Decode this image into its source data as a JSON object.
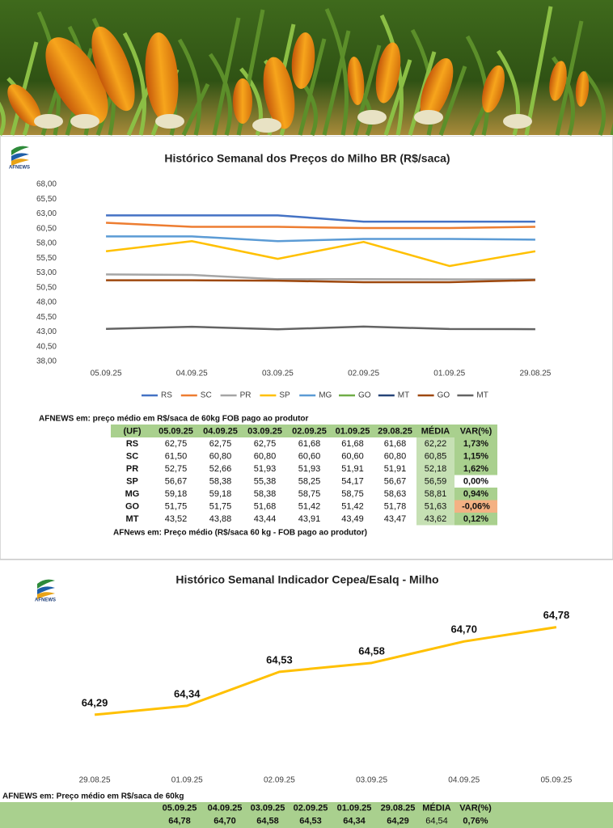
{
  "logo_text": "AFNEWS",
  "chart_data": [
    {
      "type": "line",
      "title": "Histórico Semanal dos Preços do Milho BR (R$/saca)",
      "categories": [
        "05.09.25",
        "04.09.25",
        "03.09.25",
        "02.09.25",
        "01.09.25",
        "29.08.25"
      ],
      "ylim": [
        38,
        68
      ],
      "yticks": [
        {
          "value": 38,
          "label": "38,00"
        },
        {
          "value": 40.5,
          "label": "40,50"
        },
        {
          "value": 43,
          "label": "43,00"
        },
        {
          "value": 45.5,
          "label": "45,50"
        },
        {
          "value": 48,
          "label": "48,00"
        },
        {
          "value": 50.5,
          "label": "50,50"
        },
        {
          "value": 53,
          "label": "53,00"
        },
        {
          "value": 55.5,
          "label": "55,50"
        },
        {
          "value": 58,
          "label": "58,00"
        },
        {
          "value": 60.5,
          "label": "60,50"
        },
        {
          "value": 63,
          "label": "63,00"
        },
        {
          "value": 65.5,
          "label": "65,50"
        },
        {
          "value": 68,
          "label": "68,00"
        }
      ],
      "grid": false,
      "legend": "bottom",
      "series": [
        {
          "name": "RS",
          "color": "#4472c4",
          "values": [
            62.75,
            62.75,
            62.75,
            61.68,
            61.68,
            61.68
          ]
        },
        {
          "name": "SC",
          "color": "#ed7d31",
          "values": [
            61.5,
            60.8,
            60.8,
            60.6,
            60.6,
            60.8
          ]
        },
        {
          "name": "PR",
          "color": "#a5a5a5",
          "values": [
            52.75,
            52.66,
            51.93,
            51.93,
            51.91,
            51.91
          ]
        },
        {
          "name": "SP",
          "color": "#ffc000",
          "values": [
            56.67,
            58.38,
            55.38,
            58.25,
            54.17,
            56.67
          ]
        },
        {
          "name": "MG",
          "color": "#5b9bd5",
          "values": [
            59.18,
            59.18,
            58.38,
            58.75,
            58.75,
            58.63
          ]
        },
        {
          "name": "GO",
          "color": "#70ad47",
          "values": [
            null,
            null,
            null,
            null,
            null,
            null
          ]
        },
        {
          "name": "MT",
          "color": "#264478",
          "values": [
            null,
            null,
            null,
            null,
            null,
            null
          ]
        },
        {
          "name": "GO",
          "color": "#9e480e",
          "values": [
            51.75,
            51.75,
            51.68,
            51.42,
            51.42,
            51.78
          ]
        },
        {
          "name": "MT",
          "color": "#636363",
          "values": [
            43.52,
            43.88,
            43.44,
            43.91,
            43.49,
            43.47
          ]
        }
      ]
    },
    {
      "type": "line",
      "title": "Histórico Semanal Indicador Cepea/Esalq - Milho",
      "categories": [
        "29.08.25",
        "01.09.25",
        "02.09.25",
        "03.09.25",
        "04.09.25",
        "05.09.25"
      ],
      "ylim": [
        64,
        65
      ],
      "color": "#ffc000",
      "values": [
        64.29,
        64.34,
        64.53,
        64.58,
        64.7,
        64.78
      ],
      "value_labels": [
        "64,29",
        "64,34",
        "64,53",
        "64,58",
        "64,70",
        "64,78"
      ]
    }
  ],
  "table1": {
    "caption": "AFNEWS em: preço médio em R$/saca de 60kg FOB pago ao produtor",
    "header": [
      "(UF)",
      "05.09.25",
      "04.09.25",
      "03.09.25",
      "02.09.25",
      "01.09.25",
      "29.08.25",
      "MÉDIA",
      "VAR(%)"
    ],
    "rows": [
      [
        "RS",
        "62,75",
        "62,75",
        "62,75",
        "61,68",
        "61,68",
        "61,68",
        "62,22",
        "1,73%"
      ],
      [
        "SC",
        "61,50",
        "60,80",
        "60,80",
        "60,60",
        "60,60",
        "60,80",
        "60,85",
        "1,15%"
      ],
      [
        "PR",
        "52,75",
        "52,66",
        "51,93",
        "51,93",
        "51,91",
        "51,91",
        "52,18",
        "1,62%"
      ],
      [
        "SP",
        "56,67",
        "58,38",
        "55,38",
        "58,25",
        "54,17",
        "56,67",
        "56,59",
        "0,00%"
      ],
      [
        "MG",
        "59,18",
        "59,18",
        "58,38",
        "58,75",
        "58,75",
        "58,63",
        "58,81",
        "0,94%"
      ],
      [
        "GO",
        "51,75",
        "51,75",
        "51,68",
        "51,42",
        "51,42",
        "51,78",
        "51,63",
        "-0,06%"
      ],
      [
        "MT",
        "43,52",
        "43,88",
        "43,44",
        "43,91",
        "43,49",
        "43,47",
        "43,62",
        "0,12%"
      ]
    ],
    "var_colors": [
      "#a9d08e",
      "#a9d08e",
      "#a9d08e",
      "#ffffff",
      "#a9d08e",
      "#f4b183",
      "#a9d08e"
    ],
    "footnote": "AFNews em: Preço médio (R$/saca 60 kg - FOB pago ao produtor)"
  },
  "table2": {
    "caption": "AFNEWS em: Preço médio em R$/saca de 60kg",
    "header": [
      "05.09.25",
      "04.09.25",
      "03.09.25",
      "02.09.25",
      "01.09.25",
      "29.08.25",
      "MÉDIA",
      "VAR(%)"
    ],
    "rows": [
      [
        "64,78",
        "64,70",
        "64,58",
        "64,53",
        "64,34",
        "64,29",
        "64,54",
        "0,76%"
      ]
    ]
  }
}
